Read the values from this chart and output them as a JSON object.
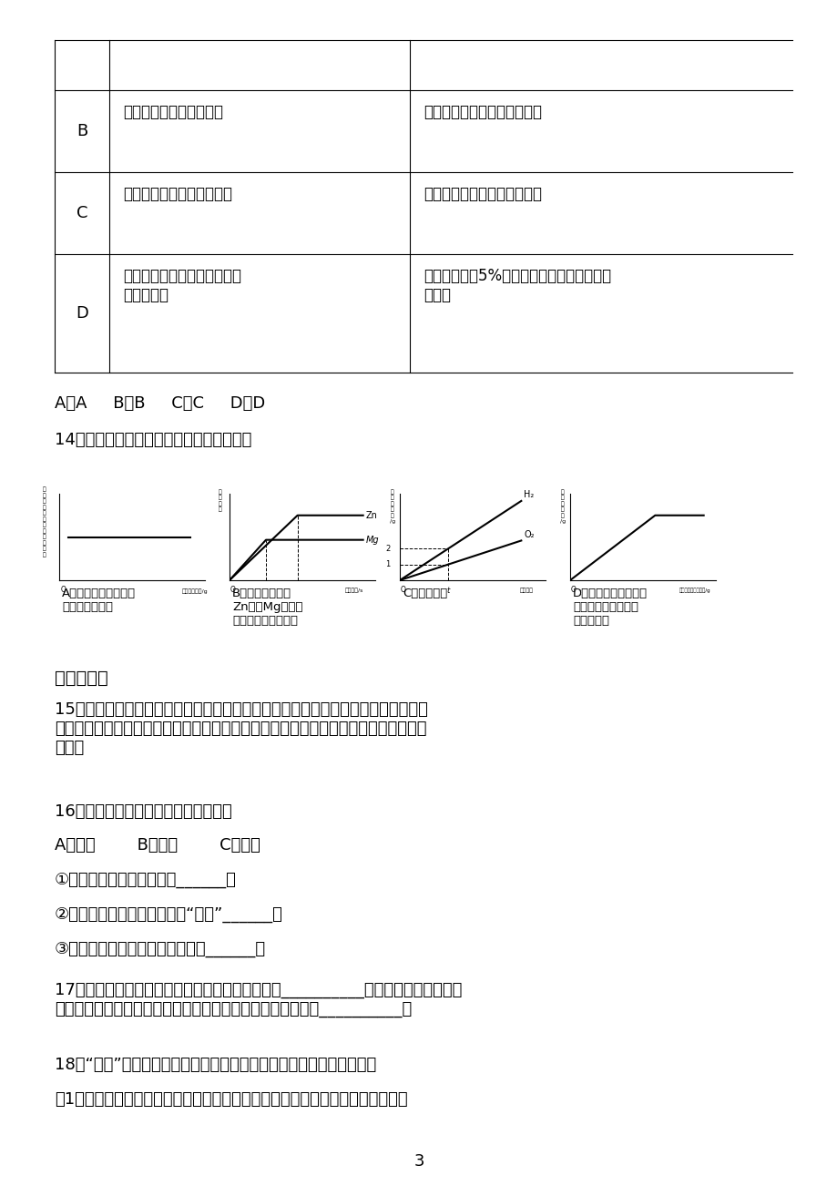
{
  "bg_color": "#ffffff",
  "answer_line": "A．A     B．B     C．C     D．D",
  "q14_text": "14．下列叙述与对应的坐标图表示正确的是",
  "section2_title": "二、填空题",
  "page_num": "3"
}
